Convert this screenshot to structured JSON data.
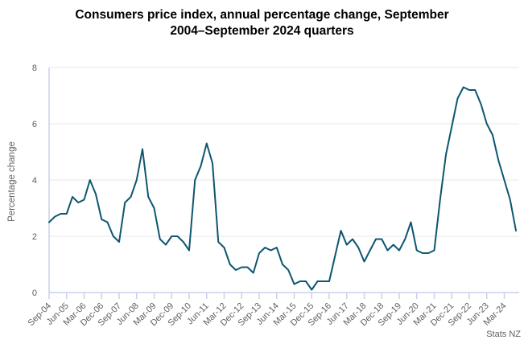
{
  "chart_data": {
    "type": "line",
    "title": "Consumers price index, annual percentage change, September 2004–September 2024 quarters",
    "title_lines": [
      "Consumers price index, annual percentage change, September",
      "2004–September 2024 quarters"
    ],
    "ylabel": "Percentage change",
    "xlabel": "",
    "attribution": "Stats NZ",
    "x": [
      "Sep-04",
      "Dec-04",
      "Mar-05",
      "Jun-05",
      "Sep-05",
      "Dec-05",
      "Mar-06",
      "Jun-06",
      "Sep-06",
      "Dec-06",
      "Mar-07",
      "Jun-07",
      "Sep-07",
      "Dec-07",
      "Mar-08",
      "Jun-08",
      "Sep-08",
      "Dec-08",
      "Mar-09",
      "Jun-09",
      "Sep-09",
      "Dec-09",
      "Mar-10",
      "Jun-10",
      "Sep-10",
      "Dec-10",
      "Mar-11",
      "Jun-11",
      "Sep-11",
      "Dec-11",
      "Mar-12",
      "Jun-12",
      "Sep-12",
      "Dec-12",
      "Mar-13",
      "Jun-13",
      "Sep-13",
      "Dec-13",
      "Mar-14",
      "Jun-14",
      "Sep-14",
      "Dec-14",
      "Mar-15",
      "Jun-15",
      "Sep-15",
      "Dec-15",
      "Mar-16",
      "Jun-16",
      "Sep-16",
      "Dec-16",
      "Mar-17",
      "Jun-17",
      "Sep-17",
      "Dec-17",
      "Mar-18",
      "Jun-18",
      "Sep-18",
      "Dec-18",
      "Mar-19",
      "Jun-19",
      "Sep-19",
      "Dec-19",
      "Mar-20",
      "Jun-20",
      "Sep-20",
      "Dec-20",
      "Mar-21",
      "Jun-21",
      "Sep-21",
      "Dec-21",
      "Mar-22",
      "Jun-22",
      "Sep-22",
      "Dec-22",
      "Mar-23",
      "Jun-23",
      "Sep-23",
      "Dec-23",
      "Mar-24",
      "Jun-24",
      "Sep-24"
    ],
    "values": [
      2.5,
      2.7,
      2.8,
      2.8,
      3.4,
      3.2,
      3.3,
      4.0,
      3.5,
      2.6,
      2.5,
      2.0,
      1.8,
      3.2,
      3.4,
      4.0,
      5.1,
      3.4,
      3.0,
      1.9,
      1.7,
      2.0,
      2.0,
      1.8,
      1.5,
      4.0,
      4.5,
      5.3,
      4.6,
      1.8,
      1.6,
      1.0,
      0.8,
      0.9,
      0.9,
      0.7,
      1.4,
      1.6,
      1.5,
      1.6,
      1.0,
      0.8,
      0.3,
      0.4,
      0.4,
      0.1,
      0.4,
      0.4,
      0.4,
      1.3,
      2.2,
      1.7,
      1.9,
      1.6,
      1.1,
      1.5,
      1.9,
      1.9,
      1.5,
      1.7,
      1.5,
      1.9,
      2.5,
      1.5,
      1.4,
      1.4,
      1.5,
      3.3,
      4.9,
      5.9,
      6.9,
      7.3,
      7.2,
      7.2,
      6.7,
      6.0,
      5.6,
      4.7,
      4.0,
      3.3,
      2.2
    ],
    "x_tick_every": 3,
    "yticks": [
      0,
      2,
      4,
      6,
      8
    ],
    "ylim": [
      0,
      8
    ],
    "grid": "horizontal",
    "legend": "none",
    "colors": {
      "line": "#0d5670",
      "grid": "#e7e7e7",
      "axis": "#c9d2e8",
      "tick_text": "#5f5f5f",
      "title_text": "#000000"
    }
  }
}
